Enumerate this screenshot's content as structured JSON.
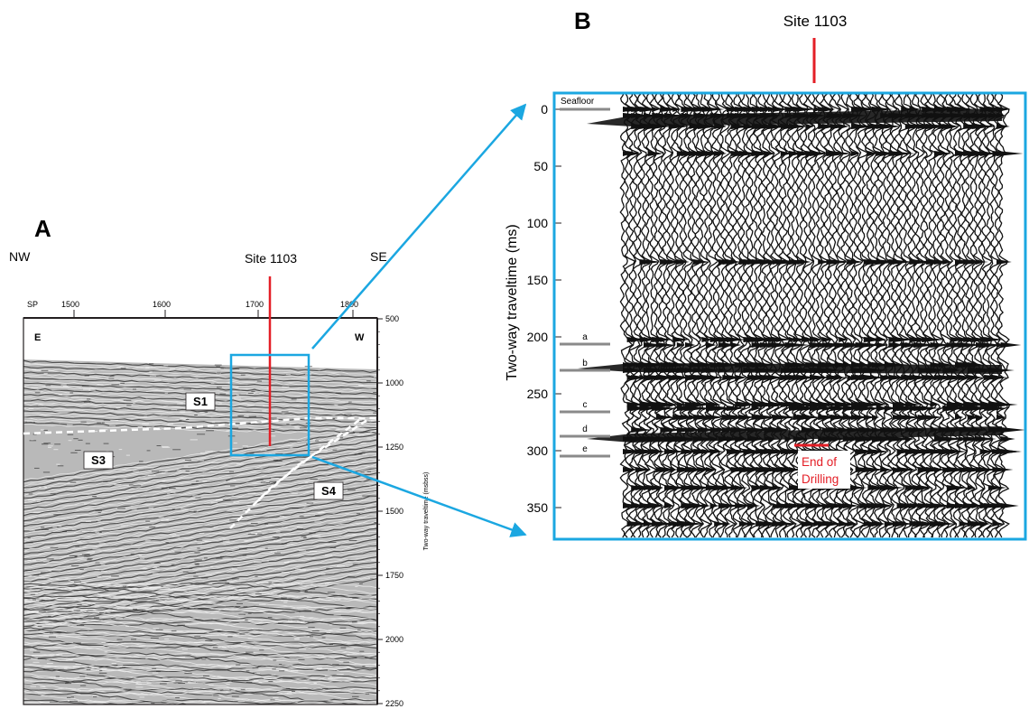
{
  "colors": {
    "ink": "#231f20",
    "accent_red": "#e41e26",
    "accent_blue": "#1ba7e1",
    "horizon_gray": "#8a8a8a",
    "dashed_white": "#ffffff"
  },
  "panel_a": {
    "letter": "A",
    "direction_left": "NW",
    "direction_right": "SE",
    "site_label": "Site 1103",
    "sp_prefix": "SP",
    "sp_ticks": [
      "1500",
      "1600",
      "1700",
      "1800"
    ],
    "inner_left": "E",
    "inner_right": "W",
    "time_ticks": [
      "500",
      "1000",
      "1250",
      "1500",
      "1750",
      "2000",
      "2250"
    ],
    "y_axis_label": "Two-way traveltime (msbss)",
    "units": [
      "S1",
      "S3",
      "S4"
    ],
    "icons": [
      "seismic-profile-texture",
      "dashed-boundary-line",
      "site-marker-line",
      "zoom-box"
    ]
  },
  "panel_b": {
    "letter": "B",
    "site_label": "Site 1103",
    "y_axis_label": "Two-way traveltime (ms)",
    "time_ticks": [
      "0",
      "50",
      "100",
      "150",
      "200",
      "250",
      "300",
      "350"
    ],
    "seafloor_label": "Seafloor",
    "horizons": [
      "a",
      "b",
      "c",
      "d",
      "e"
    ],
    "end_label_line1": "End of",
    "end_label_line2": "Drilling",
    "icons": [
      "wiggle-trace-texture",
      "zoom-arrow",
      "end-of-drilling-marker"
    ]
  }
}
